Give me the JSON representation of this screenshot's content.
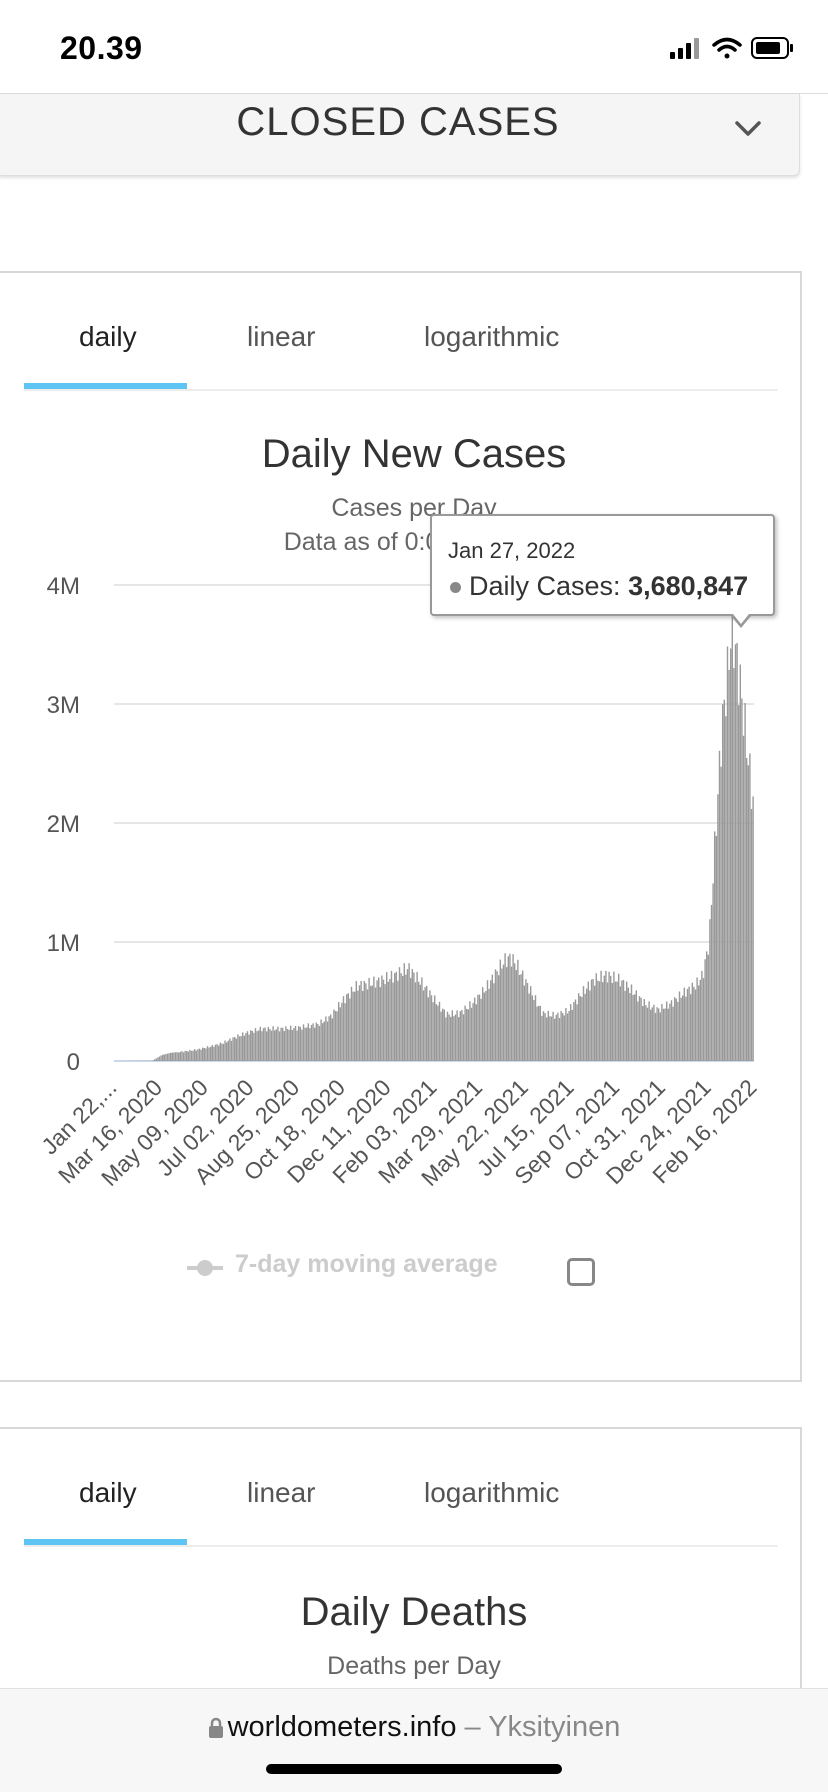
{
  "status_bar": {
    "time": "20.39"
  },
  "closed_cases": {
    "title": "CLOSED CASES"
  },
  "tabs": [
    "daily",
    "linear",
    "logarithmic"
  ],
  "active_tab": "daily",
  "chart1": {
    "title": "Daily New Cases",
    "subtitle": "Cases per Day",
    "subtitle2": "Data as of 0:00 GMT+0",
    "legend_label": "7-day moving average",
    "tooltip": {
      "date": "Jan 27, 2022",
      "label": "Daily Cases:",
      "value": "3,680,847"
    }
  },
  "chart2": {
    "title": "Daily Deaths",
    "subtitle": "Deaths per Day"
  },
  "chart_data": {
    "type": "bar",
    "title": "Daily New Cases",
    "subtitle": "Cases per Day",
    "ylim": [
      0,
      4000000
    ],
    "y_ticks": [
      0,
      1000000,
      2000000,
      3000000,
      4000000
    ],
    "y_tick_labels": [
      "0",
      "1M",
      "2M",
      "3M",
      "4M"
    ],
    "x_tick_labels": [
      "Jan 22,...",
      "Mar 16, 2020",
      "May 09, 2020",
      "Jul 02, 2020",
      "Aug 25, 2020",
      "Oct 18, 2020",
      "Dec 11, 2020",
      "Feb 03, 2021",
      "Mar 29, 2021",
      "May 22, 2021",
      "Jul 15, 2021",
      "Sep 07, 2021",
      "Oct 31, 2021",
      "Dec 24, 2021",
      "Feb 16, 2022"
    ],
    "grid": true,
    "bar_color": "#999999",
    "x_range": [
      "Jan 22, 2020",
      "Feb 28, 2022"
    ],
    "series": [
      {
        "values": [
          [
            0.0,
            0
          ],
          [
            0.06,
            2000
          ],
          [
            0.075,
            50000
          ],
          [
            0.09,
            70000
          ],
          [
            0.11,
            80000
          ],
          [
            0.13,
            95000
          ],
          [
            0.15,
            120000
          ],
          [
            0.17,
            150000
          ],
          [
            0.19,
            200000
          ],
          [
            0.21,
            240000
          ],
          [
            0.23,
            270000
          ],
          [
            0.26,
            270000
          ],
          [
            0.29,
            280000
          ],
          [
            0.32,
            310000
          ],
          [
            0.34,
            380000
          ],
          [
            0.36,
            520000
          ],
          [
            0.38,
            630000
          ],
          [
            0.4,
            650000
          ],
          [
            0.42,
            680000
          ],
          [
            0.44,
            720000
          ],
          [
            0.46,
            780000
          ],
          [
            0.48,
            660000
          ],
          [
            0.5,
            520000
          ],
          [
            0.52,
            390000
          ],
          [
            0.54,
            400000
          ],
          [
            0.56,
            480000
          ],
          [
            0.58,
            600000
          ],
          [
            0.6,
            760000
          ],
          [
            0.61,
            840000
          ],
          [
            0.62,
            870000
          ],
          [
            0.63,
            800000
          ],
          [
            0.65,
            600000
          ],
          [
            0.67,
            400000
          ],
          [
            0.69,
            380000
          ],
          [
            0.71,
            420000
          ],
          [
            0.73,
            560000
          ],
          [
            0.75,
            680000
          ],
          [
            0.77,
            720000
          ],
          [
            0.79,
            680000
          ],
          [
            0.81,
            590000
          ],
          [
            0.83,
            480000
          ],
          [
            0.85,
            430000
          ],
          [
            0.87,
            480000
          ],
          [
            0.89,
            570000
          ],
          [
            0.91,
            640000
          ],
          [
            0.92,
            720000
          ],
          [
            0.93,
            1000000
          ],
          [
            0.94,
            1900000
          ],
          [
            0.95,
            2800000
          ],
          [
            0.96,
            3300000
          ],
          [
            0.965,
            3680847
          ],
          [
            0.97,
            3500000
          ],
          [
            0.98,
            3100000
          ],
          [
            0.99,
            2600000
          ],
          [
            1.0,
            2100000
          ]
        ]
      }
    ],
    "tooltip_point": {
      "date": "Jan 27, 2022",
      "value": 3680847
    }
  }
}
